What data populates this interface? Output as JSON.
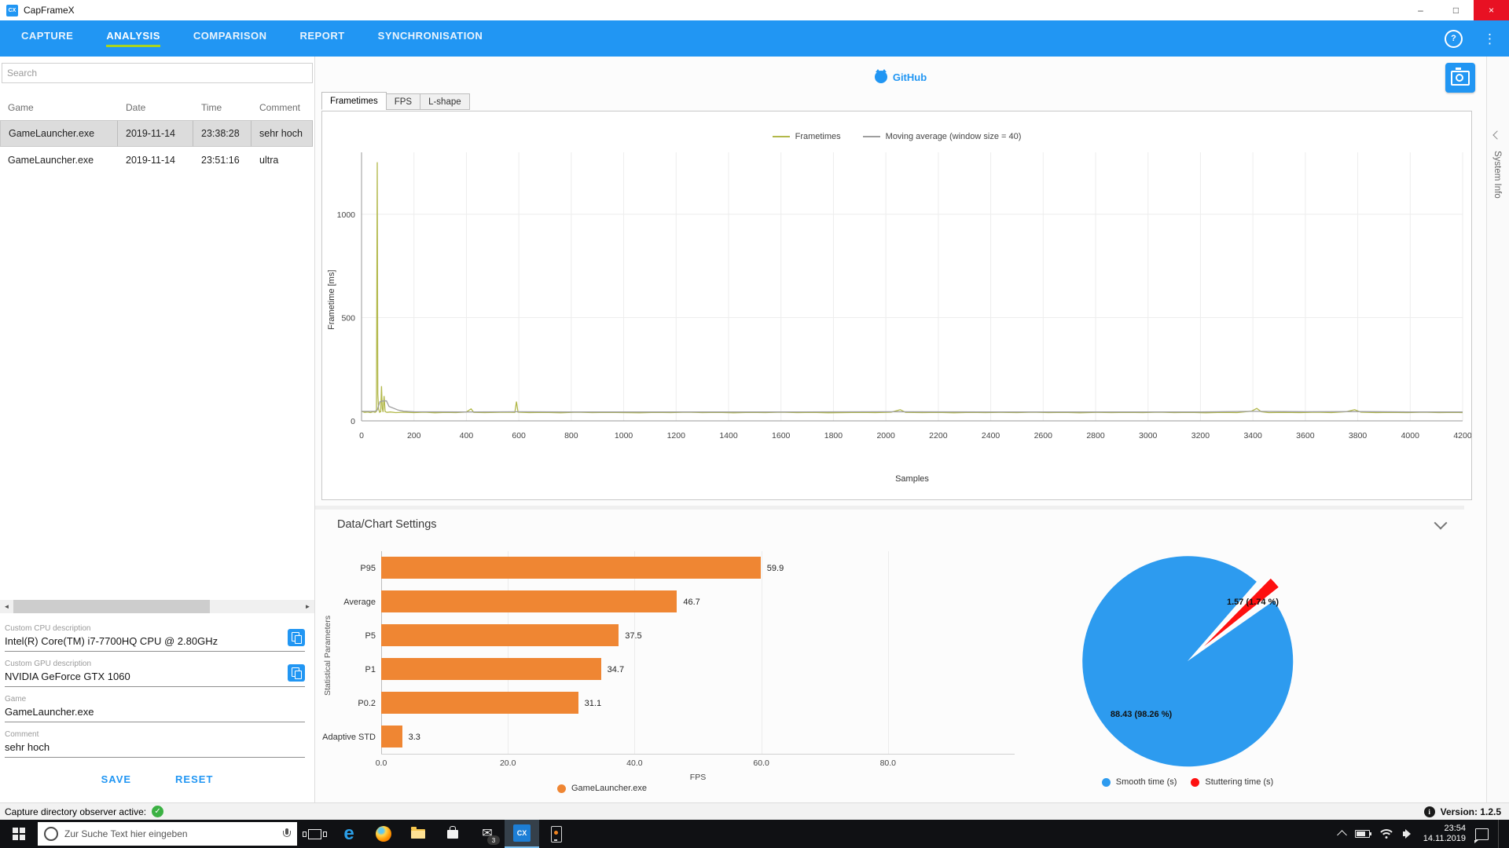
{
  "titlebar": {
    "logo_text": "CX",
    "title": "CapFrameX",
    "minimize": "–",
    "maximize": "□",
    "close": "×"
  },
  "nav": {
    "tabs": [
      {
        "id": "capture",
        "label": "CAPTURE",
        "active": false
      },
      {
        "id": "analysis",
        "label": "ANALYSIS",
        "active": true
      },
      {
        "id": "comparison",
        "label": "COMPARISON",
        "active": false
      },
      {
        "id": "report",
        "label": "REPORT",
        "active": false
      },
      {
        "id": "synchronisation",
        "label": "SYNCHRONISATION",
        "active": false
      }
    ],
    "help_icon": "?",
    "menu_icon": "⋮"
  },
  "sidebar": {
    "search_placeholder": "Search",
    "table": {
      "columns": [
        "Game",
        "Date",
        "Time",
        "Comment"
      ],
      "rows": [
        {
          "cells": [
            "GameLauncher.exe",
            "2019-11-14",
            "23:38:28",
            "sehr hoch"
          ],
          "selected": true
        },
        {
          "cells": [
            "GameLauncher.exe",
            "2019-11-14",
            "23:51:16",
            "ultra"
          ],
          "selected": false
        }
      ]
    },
    "scroll_left_arrow": "◄",
    "scroll_right_arrow": "►",
    "fields": [
      {
        "label": "Custom CPU description",
        "value": "Intel(R) Core(TM) i7-7700HQ CPU @ 2.80GHz",
        "has_copy": true
      },
      {
        "label": "Custom GPU description",
        "value": "NVIDIA GeForce GTX 1060",
        "has_copy": true
      },
      {
        "label": "Game",
        "value": "GameLauncher.exe",
        "has_copy": false
      },
      {
        "label": "Comment",
        "value": "sehr hoch",
        "has_copy": false
      }
    ],
    "save_label": "SAVE",
    "reset_label": "RESET"
  },
  "main": {
    "github_label": "GitHub",
    "chart_tabs": [
      {
        "label": "Frametimes",
        "active": true
      },
      {
        "label": "FPS",
        "active": false
      },
      {
        "label": "L-shape",
        "active": false
      }
    ],
    "settings_header": "Data/Chart Settings",
    "system_info_label": "System Info"
  },
  "chart_data": [
    {
      "type": "line",
      "xlabel": "Samples",
      "ylabel": "Frametime [ms]",
      "xlim": [
        0,
        4200
      ],
      "ylim": [
        0,
        1300
      ],
      "xticks": [
        0,
        200,
        400,
        600,
        800,
        1000,
        1200,
        1400,
        1600,
        1800,
        2000,
        2200,
        2400,
        2600,
        2800,
        3000,
        3200,
        3400,
        3600,
        3800,
        4000,
        4200
      ],
      "yticks": [
        0,
        500,
        1000
      ],
      "legend_position": "top",
      "series": [
        {
          "name": "Frametimes",
          "color": "#b2b84a",
          "points": [
            [
              0,
              46
            ],
            [
              12,
              41
            ],
            [
              24,
              43
            ],
            [
              34,
              40
            ],
            [
              44,
              44
            ],
            [
              52,
              41
            ],
            [
              57,
              46
            ],
            [
              60,
              1252
            ],
            [
              62,
              130
            ],
            [
              65,
              58
            ],
            [
              69,
              42
            ],
            [
              73,
              45
            ],
            [
              76,
              168
            ],
            [
              79,
              60
            ],
            [
              82,
              43
            ],
            [
              86,
              120
            ],
            [
              90,
              45
            ],
            [
              97,
              41
            ],
            [
              110,
              43
            ],
            [
              130,
              40
            ],
            [
              160,
              42
            ],
            [
              200,
              40
            ],
            [
              240,
              42
            ],
            [
              280,
              39
            ],
            [
              320,
              41
            ],
            [
              360,
              40
            ],
            [
              400,
              43
            ],
            [
              418,
              58
            ],
            [
              428,
              41
            ],
            [
              470,
              40
            ],
            [
              510,
              41
            ],
            [
              550,
              42
            ],
            [
              585,
              41
            ],
            [
              591,
              93
            ],
            [
              597,
              42
            ],
            [
              640,
              40
            ],
            [
              700,
              41
            ],
            [
              760,
              39
            ],
            [
              820,
              42
            ],
            [
              880,
              40
            ],
            [
              940,
              41
            ],
            [
              1000,
              40
            ],
            [
              1060,
              39
            ],
            [
              1120,
              41
            ],
            [
              1180,
              40
            ],
            [
              1240,
              42
            ],
            [
              1300,
              40
            ],
            [
              1360,
              41
            ],
            [
              1420,
              39
            ],
            [
              1480,
              41
            ],
            [
              1540,
              40
            ],
            [
              1600,
              42
            ],
            [
              1660,
              40
            ],
            [
              1720,
              41
            ],
            [
              1780,
              39
            ],
            [
              1840,
              40
            ],
            [
              1900,
              41
            ],
            [
              1960,
              40
            ],
            [
              2020,
              42
            ],
            [
              2055,
              54
            ],
            [
              2075,
              41
            ],
            [
              2140,
              40
            ],
            [
              2200,
              41
            ],
            [
              2260,
              39
            ],
            [
              2320,
              41
            ],
            [
              2380,
              40
            ],
            [
              2440,
              41
            ],
            [
              2500,
              40
            ],
            [
              2560,
              42
            ],
            [
              2620,
              40
            ],
            [
              2680,
              41
            ],
            [
              2740,
              39
            ],
            [
              2800,
              41
            ],
            [
              2860,
              40
            ],
            [
              2920,
              41
            ],
            [
              2980,
              40
            ],
            [
              3040,
              42
            ],
            [
              3100,
              40
            ],
            [
              3160,
              41
            ],
            [
              3220,
              39
            ],
            [
              3280,
              41
            ],
            [
              3340,
              40
            ],
            [
              3395,
              47
            ],
            [
              3415,
              60
            ],
            [
              3432,
              44
            ],
            [
              3460,
              40
            ],
            [
              3520,
              41
            ],
            [
              3580,
              40
            ],
            [
              3640,
              42
            ],
            [
              3700,
              40
            ],
            [
              3755,
              44
            ],
            [
              3788,
              54
            ],
            [
              3812,
              42
            ],
            [
              3870,
              40
            ],
            [
              3930,
              41
            ],
            [
              3990,
              40
            ],
            [
              4050,
              42
            ],
            [
              4110,
              40
            ],
            [
              4170,
              41
            ],
            [
              4200,
              40
            ]
          ]
        },
        {
          "name": "Moving average (window size = 40)",
          "color": "#9e9e9e",
          "points": [
            [
              0,
              46
            ],
            [
              50,
              46
            ],
            [
              60,
              52
            ],
            [
              70,
              92
            ],
            [
              80,
              96
            ],
            [
              95,
              97
            ],
            [
              105,
              70
            ],
            [
              140,
              52
            ],
            [
              160,
              47
            ],
            [
              200,
              44
            ],
            [
              400,
              43
            ],
            [
              600,
              44
            ],
            [
              800,
              43
            ],
            [
              1200,
              43
            ],
            [
              1600,
              43
            ],
            [
              2000,
              44
            ],
            [
              2400,
              43
            ],
            [
              2800,
              43
            ],
            [
              3200,
              43
            ],
            [
              3400,
              46
            ],
            [
              3600,
              44
            ],
            [
              3800,
              45
            ],
            [
              4000,
              43
            ],
            [
              4200,
              43
            ]
          ]
        }
      ]
    },
    {
      "type": "bar",
      "orientation": "horizontal",
      "categories": [
        "P95",
        "Average",
        "P5",
        "P1",
        "P0.2",
        "Adaptive STD"
      ],
      "values": [
        59.9,
        46.7,
        37.5,
        34.7,
        31.1,
        3.3
      ],
      "value_labels": [
        "59.9",
        "46.7",
        "37.5",
        "34.7",
        "31.1",
        "3.3"
      ],
      "xlabel": "FPS",
      "ylabel": "Statistical Parameters",
      "xlim": [
        0,
        100
      ],
      "xticks": [
        0,
        20,
        40,
        60,
        80
      ],
      "xtick_labels": [
        "0.0",
        "20.0",
        "40.0",
        "60.0",
        "80.0"
      ],
      "bar_color": "#ef8633",
      "legend": [
        {
          "label": "GameLauncher.exe",
          "color": "#ef8633"
        }
      ]
    },
    {
      "type": "pie",
      "slices": [
        {
          "label": "Smooth time (s)",
          "value": 88.43,
          "pct": 98.26,
          "color": "#2d9bef",
          "display": "88.43 (98.26 %)"
        },
        {
          "label": "Stuttering time (s)",
          "value": 1.57,
          "pct": 1.74,
          "color": "#fe1010",
          "display": "1.57 (1.74 %)"
        }
      ],
      "legend_position": "bottom"
    }
  ],
  "statusbar": {
    "left_text": "Capture directory observer active:",
    "check_glyph": "✓",
    "info_glyph": "i",
    "version_label": "Version: 1.2.5"
  },
  "taskbar": {
    "search_placeholder": "Zur Suche Text hier eingeben",
    "edge_glyph": "e",
    "mail_glyph": "✉",
    "mail_badge": "3",
    "cx_label": "CX",
    "clock_time": "23:54",
    "clock_date": "14.11.2019"
  },
  "colors": {
    "accent_blue": "#2196f3",
    "accent_lime": "#a8d41e",
    "bar_orange": "#ef8633",
    "pie_blue": "#2d9bef",
    "pie_red": "#fe1010",
    "frametimes_line": "#b2b84a",
    "moving_avg": "#9e9e9e",
    "close_red": "#e81123",
    "check_green": "#3bb143"
  }
}
